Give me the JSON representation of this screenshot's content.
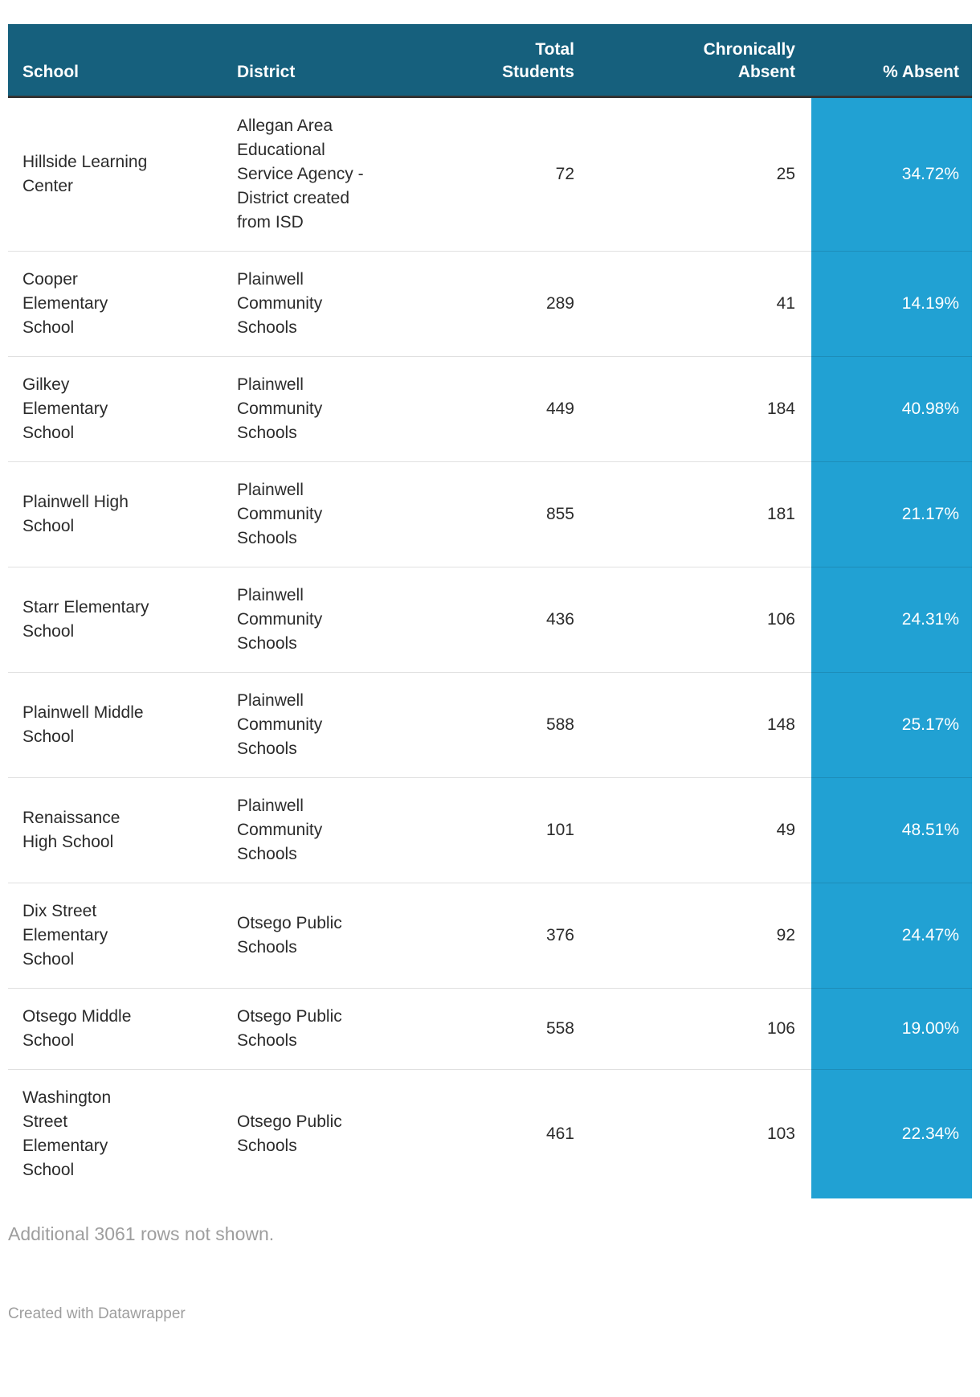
{
  "chart_data": {
    "type": "table",
    "columns": [
      "School",
      "District",
      "Total Students",
      "Chronically Absent",
      "% Absent"
    ],
    "highlight_column": "% Absent",
    "rows": [
      {
        "school": "Hillside Learning Center",
        "district": "Allegan Area Educational Service Agency - District created from ISD",
        "total_students": "72",
        "chronically_absent": "25",
        "pct_absent": "34.72%"
      },
      {
        "school": "Cooper Elementary School",
        "district": "Plainwell Community Schools",
        "total_students": "289",
        "chronically_absent": "41",
        "pct_absent": "14.19%"
      },
      {
        "school": "Gilkey Elementary School",
        "district": "Plainwell Community Schools",
        "total_students": "449",
        "chronically_absent": "184",
        "pct_absent": "40.98%"
      },
      {
        "school": "Plainwell High School",
        "district": "Plainwell Community Schools",
        "total_students": "855",
        "chronically_absent": "181",
        "pct_absent": "21.17%"
      },
      {
        "school": "Starr Elementary School",
        "district": "Plainwell Community Schools",
        "total_students": "436",
        "chronically_absent": "106",
        "pct_absent": "24.31%"
      },
      {
        "school": "Plainwell Middle School",
        "district": "Plainwell Community Schools",
        "total_students": "588",
        "chronically_absent": "148",
        "pct_absent": "25.17%"
      },
      {
        "school": "Renaissance High School",
        "district": "Plainwell Community Schools",
        "total_students": "101",
        "chronically_absent": "49",
        "pct_absent": "48.51%"
      },
      {
        "school": "Dix Street Elementary School",
        "district": "Otsego Public Schools",
        "total_students": "376",
        "chronically_absent": "92",
        "pct_absent": "24.47%"
      },
      {
        "school": "Otsego Middle School",
        "district": "Otsego Public Schools",
        "total_students": "558",
        "chronically_absent": "106",
        "pct_absent": "19.00%"
      },
      {
        "school": "Washington Street Elementary School",
        "district": "Otsego Public Schools",
        "total_students": "461",
        "chronically_absent": "103",
        "pct_absent": "22.34%"
      }
    ],
    "note": "Additional 3061 rows not shown.",
    "credit": "Created with Datawrapper"
  },
  "colors": {
    "header_bg": "#16607d",
    "header_text": "#ffffff",
    "header_border": "#333333",
    "highlight_bg": "#21a1d3",
    "highlight_text": "#ffffff",
    "body_text": "#2b2b2b",
    "muted_text": "#9e9e9e"
  }
}
